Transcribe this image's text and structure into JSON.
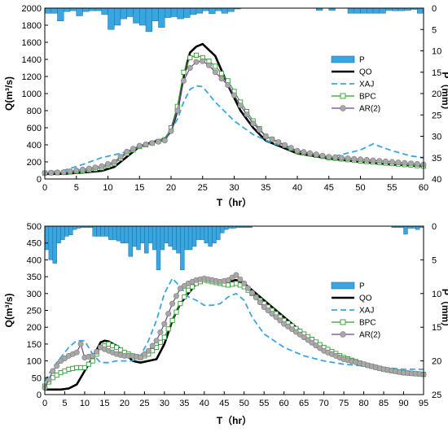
{
  "chart_data": [
    {
      "type": "line",
      "xlabel": "T（hr）",
      "ylabel": "Q(m³/s)",
      "y2label": "P（mm）",
      "xlim": [
        0,
        60
      ],
      "ylim": [
        0,
        2000
      ],
      "y2lim": [
        40,
        0
      ],
      "xticks": [
        0,
        5,
        10,
        15,
        20,
        25,
        30,
        35,
        40,
        45,
        50,
        55,
        60
      ],
      "yticks": [
        0,
        200,
        400,
        600,
        800,
        1000,
        1200,
        1400,
        1600,
        1800,
        2000
      ],
      "y2ticks": [
        0,
        5,
        10,
        15,
        20,
        25,
        30,
        35,
        40
      ],
      "legend_position": "right",
      "colors": {
        "P": "#3aa6e0",
        "QO": "#000000",
        "XAJ": "#3aa6e0",
        "BPC": "#2e9e2e",
        "AR2": "#7a3a9a",
        "AR2_marker": "#a8a8a8"
      },
      "precip": {
        "name": "P",
        "values": [
          1.2,
          1.2,
          3,
          0.8,
          0.6,
          1.8,
          0.8,
          0.6,
          0.6,
          1.5,
          5,
          4,
          2.5,
          2,
          3.5,
          4,
          5.5,
          3,
          4.5,
          2.2,
          2,
          2.5,
          2.2,
          1.5,
          1.2,
          0.6,
          1.3,
          0.6,
          1.2,
          0.8,
          0.2,
          0,
          0,
          0,
          0,
          0,
          0,
          0,
          0,
          0,
          0,
          0,
          0,
          0.5,
          0,
          0.5,
          0,
          0,
          1.2,
          1.2,
          1.2,
          1.2,
          1.2,
          1.2,
          0.5,
          0.6,
          0.6,
          0.5,
          0.3,
          1.2
        ]
      },
      "series": [
        {
          "name": "QO",
          "x": [
            0,
            3,
            6,
            9,
            11,
            13,
            15,
            17,
            19,
            20,
            21,
            22,
            23,
            24,
            25,
            27,
            29,
            31,
            33,
            35,
            40,
            45,
            50,
            55,
            60
          ],
          "y": [
            60,
            60,
            75,
            95,
            140,
            260,
            380,
            430,
            470,
            560,
            800,
            1200,
            1480,
            1550,
            1580,
            1440,
            1100,
            800,
            600,
            450,
            300,
            240,
            200,
            170,
            150
          ]
        },
        {
          "name": "XAJ",
          "x": [
            0,
            3,
            6,
            9,
            12,
            15,
            17,
            19,
            20,
            21,
            22,
            23,
            24,
            25,
            27,
            30,
            33,
            36,
            40,
            45,
            50,
            52,
            55,
            58,
            60
          ],
          "y": [
            70,
            100,
            170,
            250,
            300,
            370,
            420,
            480,
            570,
            700,
            900,
            1050,
            1090,
            1080,
            900,
            680,
            520,
            420,
            330,
            250,
            340,
            410,
            330,
            270,
            250
          ]
        },
        {
          "name": "BPC",
          "x": [
            0,
            3,
            6,
            9,
            11,
            13,
            15,
            17,
            19,
            20,
            21,
            22,
            23,
            24,
            25,
            26,
            27,
            29,
            31,
            33,
            35,
            40,
            45,
            50,
            55,
            60
          ],
          "y": [
            70,
            75,
            95,
            130,
            180,
            300,
            380,
            420,
            460,
            600,
            850,
            1250,
            1420,
            1450,
            1420,
            1380,
            1320,
            1150,
            900,
            680,
            500,
            320,
            250,
            210,
            180,
            150
          ]
        },
        {
          "name": "AR(2)",
          "x": [
            0,
            3,
            6,
            9,
            11,
            13,
            15,
            17,
            19,
            20,
            21,
            22,
            23,
            24,
            25,
            26,
            27,
            29,
            31,
            33,
            35,
            40,
            45,
            50,
            55,
            60
          ],
          "y": [
            70,
            80,
            110,
            150,
            200,
            320,
            390,
            420,
            450,
            560,
            800,
            1150,
            1300,
            1370,
            1380,
            1330,
            1250,
            1100,
            860,
            650,
            500,
            330,
            260,
            230,
            200,
            170
          ]
        }
      ]
    },
    {
      "type": "line",
      "xlabel": "T（hr）",
      "ylabel": "Q(m³/s)",
      "y2label": "P（mm）",
      "xlim": [
        0,
        95
      ],
      "ylim": [
        0,
        500
      ],
      "y2lim": [
        25,
        0
      ],
      "xticks": [
        0,
        5,
        10,
        15,
        20,
        25,
        30,
        35,
        40,
        45,
        50,
        55,
        60,
        65,
        70,
        75,
        80,
        85,
        90,
        95
      ],
      "yticks": [
        0,
        50,
        100,
        150,
        200,
        250,
        300,
        350,
        400,
        450,
        500
      ],
      "y2ticks": [
        0,
        5,
        10,
        15,
        20,
        25
      ],
      "legend_position": "right",
      "colors": {
        "P": "#3aa6e0",
        "QO": "#000000",
        "XAJ": "#3aa6e0",
        "BPC": "#2e9e2e",
        "AR2": "#7a3a9a",
        "AR2_marker": "#a8a8a8"
      },
      "precip": {
        "name": "P",
        "values": [
          3.5,
          5,
          5.5,
          2.5,
          2,
          1.5,
          1.3,
          0.5,
          0.3,
          0.2,
          0.2,
          0.2,
          1.5,
          1.5,
          1.5,
          1.5,
          2,
          2,
          2.2,
          2.5,
          2.5,
          4.5,
          3,
          3.5,
          2.5,
          4,
          2.5,
          3.5,
          6.5,
          3.5,
          2.5,
          3,
          3.5,
          4,
          6.5,
          3.5,
          3.5,
          3,
          2,
          2,
          2.5,
          3,
          2.5,
          2,
          1,
          0.5,
          0.3,
          0.3,
          0.2,
          0.2,
          0.2,
          0.2,
          0,
          0,
          0,
          0,
          0,
          0,
          0,
          0,
          0,
          0,
          0,
          0,
          0,
          0,
          0,
          0,
          0,
          0,
          0,
          0,
          0,
          0,
          0,
          0,
          0,
          0,
          0,
          0,
          0,
          0,
          0,
          0,
          0,
          0,
          0,
          0.2,
          0.2,
          0.2,
          1.2,
          0.3,
          0.3,
          0.5,
          0.2
        ]
      },
      "series": [
        {
          "name": "QO",
          "x": [
            0,
            2,
            4,
            6,
            8,
            10,
            12,
            14,
            15,
            16,
            18,
            20,
            22,
            24,
            26,
            28,
            30,
            32,
            34,
            36,
            38,
            40,
            42,
            44,
            46,
            48,
            50,
            55,
            60,
            65,
            70,
            75,
            80,
            85,
            90,
            95
          ],
          "y": [
            15,
            15,
            15,
            18,
            30,
            70,
            110,
            155,
            160,
            158,
            145,
            125,
            100,
            95,
            100,
            105,
            150,
            220,
            270,
            300,
            330,
            340,
            340,
            338,
            335,
            340,
            330,
            280,
            230,
            180,
            140,
            110,
            90,
            75,
            65,
            60
          ]
        },
        {
          "name": "XAJ",
          "x": [
            0,
            2,
            4,
            6,
            8,
            10,
            12,
            14,
            16,
            18,
            20,
            22,
            24,
            26,
            28,
            30,
            32,
            34,
            36,
            38,
            40,
            42,
            44,
            46,
            48,
            50,
            52,
            55,
            60,
            65,
            70,
            75,
            80,
            85,
            90,
            95
          ],
          "y": [
            40,
            80,
            110,
            140,
            160,
            160,
            120,
            95,
            95,
            100,
            100,
            100,
            115,
            160,
            220,
            300,
            345,
            320,
            290,
            280,
            265,
            265,
            270,
            290,
            300,
            280,
            230,
            180,
            140,
            115,
            100,
            90,
            85,
            80,
            75,
            75
          ]
        },
        {
          "name": "BPC",
          "x": [
            0,
            2,
            4,
            6,
            8,
            10,
            12,
            14,
            16,
            18,
            20,
            22,
            24,
            26,
            28,
            30,
            32,
            34,
            36,
            38,
            40,
            42,
            44,
            46,
            48,
            50,
            55,
            60,
            65,
            70,
            75,
            80,
            85,
            90,
            95
          ],
          "y": [
            25,
            50,
            65,
            75,
            80,
            80,
            100,
            140,
            150,
            140,
            125,
            115,
            110,
            120,
            140,
            170,
            220,
            270,
            310,
            330,
            340,
            335,
            330,
            325,
            330,
            320,
            270,
            220,
            180,
            140,
            110,
            90,
            75,
            65,
            60
          ]
        },
        {
          "name": "AR(2)",
          "x": [
            0,
            2,
            4,
            6,
            8,
            9,
            10,
            12,
            14,
            16,
            18,
            20,
            22,
            24,
            26,
            28,
            30,
            32,
            34,
            36,
            38,
            40,
            42,
            44,
            46,
            48,
            50,
            55,
            60,
            65,
            70,
            75,
            80,
            85,
            90,
            95
          ],
          "y": [
            20,
            70,
            100,
            115,
            125,
            150,
            110,
            115,
            140,
            130,
            120,
            115,
            115,
            110,
            130,
            160,
            210,
            270,
            315,
            330,
            340,
            345,
            340,
            335,
            340,
            355,
            330,
            260,
            210,
            170,
            130,
            105,
            90,
            75,
            65,
            60
          ]
        }
      ]
    }
  ]
}
